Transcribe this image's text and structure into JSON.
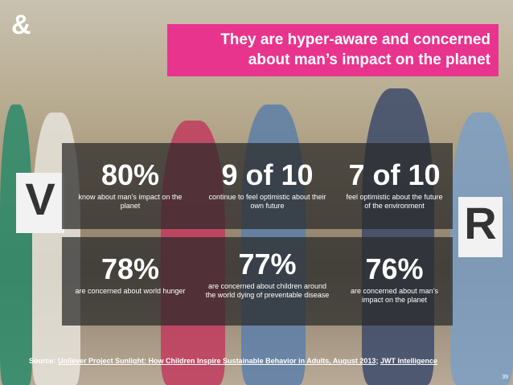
{
  "logo": "&",
  "title": "They are hyper-aware and concerned about man’s impact on the planet",
  "stats": [
    {
      "figure": "80%",
      "text": "know about man’s impact on the planet"
    },
    {
      "figure": "9 of 10",
      "text": "continue to feel optimistic about their own future"
    },
    {
      "figure": "7 of 10",
      "text": "feel optimistic about the future of the environment"
    },
    {
      "figure": "78%",
      "text": "are concerned about world hunger"
    },
    {
      "figure": "77%",
      "text": "are concerned about children around the world dying of preventable disease"
    },
    {
      "figure": "76%",
      "text": "are concerned about man’s impact on the planet"
    }
  ],
  "source": {
    "prefix": "Source:",
    "link": "Unilever Project Sunlight: How Children Inspire Sustainable Behavior in Adults, August 2013",
    "separator": ";",
    "publisher": "JWT Intelligence"
  },
  "page_number": "39"
}
